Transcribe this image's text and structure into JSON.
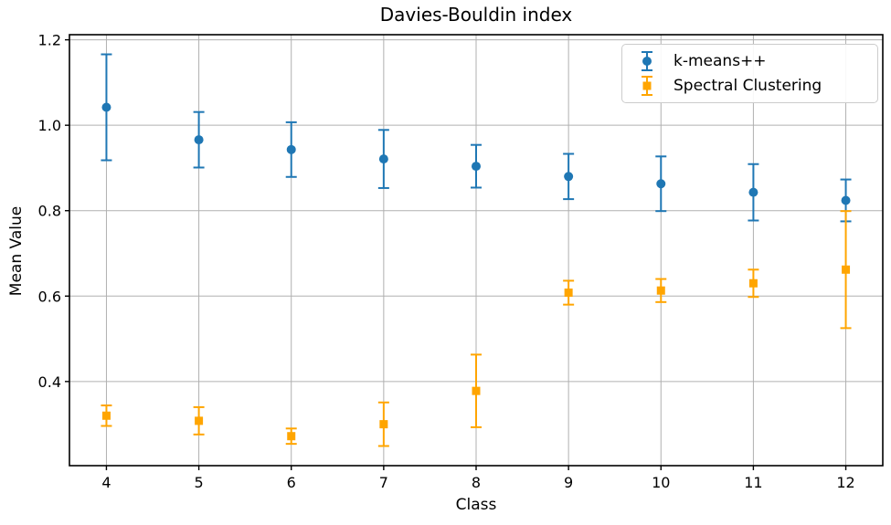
{
  "chart_data": {
    "type": "scatter",
    "subtype": "errorbar",
    "title": "Davies-Bouldin index",
    "xlabel": "Class",
    "ylabel": "Mean Value",
    "grid": true,
    "legend_position": "upper right",
    "x": [
      4,
      5,
      6,
      7,
      8,
      9,
      10,
      11,
      12
    ],
    "xlim": [
      3.6,
      12.4
    ],
    "ylim": [
      0.203,
      1.212
    ],
    "xticks": [
      4,
      5,
      6,
      7,
      8,
      9,
      10,
      11,
      12
    ],
    "xtick_labels": [
      "4",
      "5",
      "6",
      "7",
      "8",
      "9",
      "10",
      "11",
      "12"
    ],
    "yticks": [
      0.4,
      0.6,
      0.8,
      1.0,
      1.2
    ],
    "ytick_labels": [
      "0.4",
      "0.6",
      "0.8",
      "1.0",
      "1.2"
    ],
    "series": [
      {
        "name": "k-means++",
        "marker": "circle",
        "color": "#1f77b4",
        "values": [
          1.042,
          0.966,
          0.943,
          0.921,
          0.904,
          0.88,
          0.863,
          0.843,
          0.824
        ],
        "errors": [
          0.124,
          0.065,
          0.064,
          0.068,
          0.05,
          0.053,
          0.064,
          0.066,
          0.049
        ]
      },
      {
        "name": "Spectral Clustering",
        "marker": "square",
        "color": "#ffa500",
        "values": [
          0.32,
          0.308,
          0.272,
          0.3,
          0.378,
          0.608,
          0.613,
          0.63,
          0.662
        ],
        "errors": [
          0.024,
          0.032,
          0.018,
          0.051,
          0.085,
          0.028,
          0.027,
          0.032,
          0.137
        ]
      }
    ]
  }
}
